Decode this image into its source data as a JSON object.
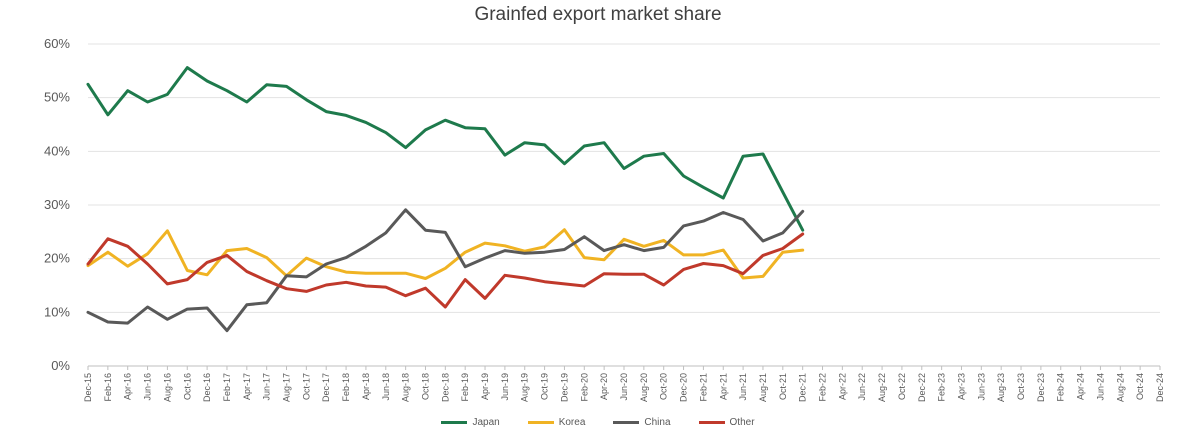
{
  "chart_data": {
    "type": "line",
    "title": "Grainfed export market share",
    "xlabel": "",
    "ylabel": "",
    "ylim": [
      0,
      60
    ],
    "y_ticks": [
      "0%",
      "10%",
      "20%",
      "30%",
      "40%",
      "50%",
      "60%"
    ],
    "grid": "horizontal",
    "legend_position": "bottom",
    "x": [
      "Dec-15",
      "Feb-16",
      "Apr-16",
      "Jun-16",
      "Aug-16",
      "Oct-16",
      "Dec-16",
      "Feb-17",
      "Apr-17",
      "Jun-17",
      "Aug-17",
      "Oct-17",
      "Dec-17",
      "Feb-18",
      "Apr-18",
      "Jun-18",
      "Aug-18",
      "Oct-18",
      "Dec-18",
      "Feb-19",
      "Apr-19",
      "Jun-19",
      "Aug-19",
      "Oct-19",
      "Dec-19",
      "Feb-20",
      "Apr-20",
      "Jun-20",
      "Aug-20",
      "Oct-20",
      "Dec-20",
      "Feb-21",
      "Apr-21",
      "Jun-21",
      "Aug-21",
      "Oct-21",
      "Dec-21",
      "Feb-22",
      "Apr-22",
      "Jun-22",
      "Aug-22",
      "Oct-22",
      "Dec-22",
      "Feb-23",
      "Apr-23",
      "Jun-23",
      "Aug-23",
      "Oct-23",
      "Dec-23",
      "Feb-24",
      "Apr-24",
      "Jun-24",
      "Aug-24",
      "Oct-24",
      "Dec-24"
    ],
    "series": [
      {
        "name": "Japan",
        "color": "#1e7a4c",
        "points": [
          [
            0,
            52.5
          ],
          [
            1,
            46.8
          ],
          [
            2,
            51.3
          ],
          [
            3,
            49.2
          ],
          [
            4,
            50.6
          ],
          [
            5,
            55.6
          ],
          [
            6,
            53.1
          ],
          [
            7,
            51.3
          ],
          [
            8,
            49.2
          ],
          [
            9,
            52.4
          ],
          [
            10,
            52.1
          ],
          [
            11,
            49.6
          ],
          [
            12,
            47.4
          ],
          [
            13,
            46.7
          ],
          [
            14,
            45.4
          ],
          [
            15,
            43.5
          ],
          [
            16,
            40.7
          ],
          [
            17,
            44.0
          ],
          [
            18,
            45.8
          ],
          [
            19,
            44.4
          ],
          [
            20,
            44.2
          ],
          [
            21,
            39.3
          ],
          [
            22,
            41.6
          ],
          [
            23,
            41.2
          ],
          [
            24,
            37.7
          ],
          [
            25,
            41.0
          ],
          [
            26,
            41.6
          ],
          [
            27,
            36.8
          ],
          [
            28,
            39.1
          ],
          [
            29,
            39.6
          ],
          [
            30,
            35.4
          ],
          [
            31,
            33.3
          ],
          [
            32,
            31.3
          ],
          [
            33,
            39.1
          ],
          [
            34,
            39.5
          ],
          [
            35,
            32.4
          ],
          [
            36,
            25.3
          ]
        ]
      },
      {
        "name": "Korea",
        "color": "#f0b323",
        "points": [
          [
            0,
            18.7
          ],
          [
            1,
            21.2
          ],
          [
            2,
            18.6
          ],
          [
            3,
            20.9
          ],
          [
            4,
            25.2
          ],
          [
            5,
            17.8
          ],
          [
            6,
            17.0
          ],
          [
            7,
            21.5
          ],
          [
            8,
            21.9
          ],
          [
            9,
            20.2
          ],
          [
            10,
            16.8
          ],
          [
            11,
            20.1
          ],
          [
            12,
            18.5
          ],
          [
            13,
            17.5
          ],
          [
            14,
            17.3
          ],
          [
            15,
            17.3
          ],
          [
            16,
            17.3
          ],
          [
            17,
            16.3
          ],
          [
            18,
            18.2
          ],
          [
            19,
            21.2
          ],
          [
            20,
            22.9
          ],
          [
            21,
            22.4
          ],
          [
            22,
            21.4
          ],
          [
            23,
            22.2
          ],
          [
            24,
            25.4
          ],
          [
            25,
            20.2
          ],
          [
            26,
            19.8
          ],
          [
            27,
            23.6
          ],
          [
            28,
            22.3
          ],
          [
            29,
            23.4
          ],
          [
            30,
            20.7
          ],
          [
            31,
            20.7
          ],
          [
            32,
            21.6
          ],
          [
            33,
            16.4
          ],
          [
            34,
            16.7
          ],
          [
            35,
            21.2
          ],
          [
            36,
            21.6
          ]
        ]
      },
      {
        "name": "China",
        "color": "#595959",
        "points": [
          [
            0,
            10.0
          ],
          [
            1,
            8.2
          ],
          [
            2,
            8.0
          ],
          [
            3,
            11.0
          ],
          [
            4,
            8.7
          ],
          [
            5,
            10.6
          ],
          [
            6,
            10.8
          ],
          [
            7,
            6.6
          ],
          [
            8,
            11.4
          ],
          [
            9,
            11.8
          ],
          [
            10,
            16.8
          ],
          [
            11,
            16.6
          ],
          [
            12,
            19.0
          ],
          [
            13,
            20.2
          ],
          [
            14,
            22.3
          ],
          [
            15,
            24.8
          ],
          [
            16,
            29.1
          ],
          [
            17,
            25.3
          ],
          [
            18,
            24.9
          ],
          [
            19,
            18.5
          ],
          [
            20,
            20.1
          ],
          [
            21,
            21.5
          ],
          [
            22,
            21.0
          ],
          [
            23,
            21.2
          ],
          [
            24,
            21.7
          ],
          [
            25,
            24.1
          ],
          [
            26,
            21.5
          ],
          [
            27,
            22.6
          ],
          [
            28,
            21.5
          ],
          [
            29,
            22.1
          ],
          [
            30,
            26.1
          ],
          [
            31,
            27.0
          ],
          [
            32,
            28.6
          ],
          [
            33,
            27.3
          ],
          [
            34,
            23.3
          ],
          [
            35,
            24.8
          ],
          [
            36,
            28.8
          ]
        ]
      },
      {
        "name": "Other",
        "color": "#c0392b",
        "points": [
          [
            0,
            19.0
          ],
          [
            1,
            23.7
          ],
          [
            2,
            22.3
          ],
          [
            3,
            19.0
          ],
          [
            4,
            15.3
          ],
          [
            5,
            16.1
          ],
          [
            6,
            19.3
          ],
          [
            7,
            20.6
          ],
          [
            8,
            17.6
          ],
          [
            9,
            15.9
          ],
          [
            10,
            14.4
          ],
          [
            11,
            13.9
          ],
          [
            12,
            15.1
          ],
          [
            13,
            15.6
          ],
          [
            14,
            14.9
          ],
          [
            15,
            14.7
          ],
          [
            16,
            13.1
          ],
          [
            17,
            14.5
          ],
          [
            18,
            11.0
          ],
          [
            19,
            16.1
          ],
          [
            20,
            12.6
          ],
          [
            21,
            16.9
          ],
          [
            22,
            16.4
          ],
          [
            23,
            15.7
          ],
          [
            24,
            15.3
          ],
          [
            25,
            14.9
          ],
          [
            26,
            17.2
          ],
          [
            27,
            17.1
          ],
          [
            28,
            17.1
          ],
          [
            29,
            15.1
          ],
          [
            30,
            18.0
          ],
          [
            31,
            19.1
          ],
          [
            32,
            18.7
          ],
          [
            33,
            17.2
          ],
          [
            34,
            20.6
          ],
          [
            35,
            21.9
          ],
          [
            36,
            24.6
          ]
        ]
      }
    ]
  }
}
